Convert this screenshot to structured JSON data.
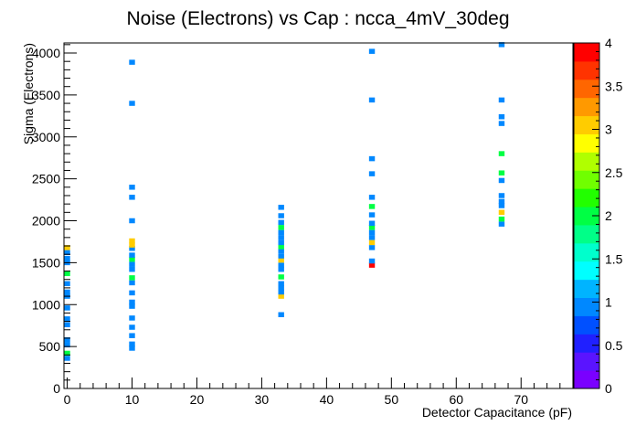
{
  "chart_data": {
    "type": "heatmap",
    "title": "Noise (Electrons) vs Cap : ncca_4mV_30deg",
    "xlabel": "Detector Capacitance (pF)",
    "ylabel": "Sigma (Electrons)",
    "xlim": [
      -0.5,
      78
    ],
    "ylim": [
      0,
      4120
    ],
    "x_ticks": [
      0,
      10,
      20,
      30,
      40,
      50,
      60,
      70
    ],
    "y_ticks": [
      0,
      500,
      1000,
      1500,
      2000,
      2500,
      3000,
      3500,
      4000
    ],
    "grid": false,
    "legend": "none",
    "colorbar": {
      "min": 0,
      "max": 4,
      "ticks": [
        0,
        0.5,
        1,
        1.5,
        2,
        2.5,
        3,
        3.5,
        4
      ],
      "colors": [
        "#7a00ff",
        "#5a14ff",
        "#2020ff",
        "#0050ff",
        "#0088ff",
        "#00b4ff",
        "#00ffff",
        "#00ffcc",
        "#00ff88",
        "#00ff44",
        "#22ff00",
        "#70ff00",
        "#b0ff00",
        "#ffff00",
        "#ffcc00",
        "#ff9900",
        "#ff6600",
        "#ff3300",
        "#ff0000"
      ]
    },
    "bin_width": 0.9,
    "bin_height": 60,
    "cells": [
      {
        "x": 0,
        "y": 360,
        "z": 1
      },
      {
        "x": 0,
        "y": 420,
        "z": 2
      },
      {
        "x": 0,
        "y": 520,
        "z": 1
      },
      {
        "x": 0,
        "y": 580,
        "z": 1
      },
      {
        "x": 0,
        "y": 760,
        "z": 1
      },
      {
        "x": 0,
        "y": 830,
        "z": 1
      },
      {
        "x": 0,
        "y": 960,
        "z": 1
      },
      {
        "x": 0,
        "y": 1100,
        "z": 1
      },
      {
        "x": 0,
        "y": 1150,
        "z": 1
      },
      {
        "x": 0,
        "y": 1250,
        "z": 1
      },
      {
        "x": 0,
        "y": 1370,
        "z": 2
      },
      {
        "x": 0,
        "y": 1500,
        "z": 1
      },
      {
        "x": 0,
        "y": 1550,
        "z": 1
      },
      {
        "x": 0,
        "y": 1620,
        "z": 1
      },
      {
        "x": 0,
        "y": 1680,
        "z": 3
      },
      {
        "x": 10,
        "y": 480,
        "z": 1
      },
      {
        "x": 10,
        "y": 530,
        "z": 1
      },
      {
        "x": 10,
        "y": 630,
        "z": 1
      },
      {
        "x": 10,
        "y": 730,
        "z": 1
      },
      {
        "x": 10,
        "y": 840,
        "z": 1
      },
      {
        "x": 10,
        "y": 980,
        "z": 1
      },
      {
        "x": 10,
        "y": 1030,
        "z": 1
      },
      {
        "x": 10,
        "y": 1140,
        "z": 1
      },
      {
        "x": 10,
        "y": 1260,
        "z": 1
      },
      {
        "x": 10,
        "y": 1320,
        "z": 2
      },
      {
        "x": 10,
        "y": 1420,
        "z": 1
      },
      {
        "x": 10,
        "y": 1480,
        "z": 1
      },
      {
        "x": 10,
        "y": 1540,
        "z": 2
      },
      {
        "x": 10,
        "y": 1590,
        "z": 1
      },
      {
        "x": 10,
        "y": 1670,
        "z": 1
      },
      {
        "x": 10,
        "y": 1710,
        "z": 3
      },
      {
        "x": 10,
        "y": 1760,
        "z": 3
      },
      {
        "x": 10,
        "y": 2000,
        "z": 1
      },
      {
        "x": 10,
        "y": 2280,
        "z": 1
      },
      {
        "x": 10,
        "y": 2400,
        "z": 1
      },
      {
        "x": 10,
        "y": 3400,
        "z": 1
      },
      {
        "x": 10,
        "y": 3890,
        "z": 1
      },
      {
        "x": 33,
        "y": 880,
        "z": 1
      },
      {
        "x": 33,
        "y": 1100,
        "z": 3
      },
      {
        "x": 33,
        "y": 1150,
        "z": 1
      },
      {
        "x": 33,
        "y": 1200,
        "z": 1
      },
      {
        "x": 33,
        "y": 1250,
        "z": 1
      },
      {
        "x": 33,
        "y": 1330,
        "z": 2
      },
      {
        "x": 33,
        "y": 1420,
        "z": 1
      },
      {
        "x": 33,
        "y": 1470,
        "z": 1
      },
      {
        "x": 33,
        "y": 1530,
        "z": 3
      },
      {
        "x": 33,
        "y": 1580,
        "z": 1
      },
      {
        "x": 33,
        "y": 1640,
        "z": 1
      },
      {
        "x": 33,
        "y": 1690,
        "z": 2
      },
      {
        "x": 33,
        "y": 1740,
        "z": 1
      },
      {
        "x": 33,
        "y": 1800,
        "z": 1
      },
      {
        "x": 33,
        "y": 1860,
        "z": 1
      },
      {
        "x": 33,
        "y": 1920,
        "z": 2
      },
      {
        "x": 33,
        "y": 1980,
        "z": 1
      },
      {
        "x": 33,
        "y": 2060,
        "z": 1
      },
      {
        "x": 33,
        "y": 2160,
        "z": 1
      },
      {
        "x": 47,
        "y": 1470,
        "z": 4
      },
      {
        "x": 47,
        "y": 1520,
        "z": 1
      },
      {
        "x": 47,
        "y": 1680,
        "z": 1
      },
      {
        "x": 47,
        "y": 1740,
        "z": 3
      },
      {
        "x": 47,
        "y": 1800,
        "z": 1
      },
      {
        "x": 47,
        "y": 1860,
        "z": 1
      },
      {
        "x": 47,
        "y": 1920,
        "z": 2
      },
      {
        "x": 47,
        "y": 1970,
        "z": 1
      },
      {
        "x": 47,
        "y": 2070,
        "z": 1
      },
      {
        "x": 47,
        "y": 2170,
        "z": 2
      },
      {
        "x": 47,
        "y": 2280,
        "z": 1
      },
      {
        "x": 47,
        "y": 2560,
        "z": 1
      },
      {
        "x": 47,
        "y": 2740,
        "z": 1
      },
      {
        "x": 47,
        "y": 3440,
        "z": 1
      },
      {
        "x": 47,
        "y": 4020,
        "z": 1
      },
      {
        "x": 67,
        "y": 1960,
        "z": 1
      },
      {
        "x": 67,
        "y": 2020,
        "z": 2
      },
      {
        "x": 67,
        "y": 2100,
        "z": 3
      },
      {
        "x": 67,
        "y": 2180,
        "z": 1
      },
      {
        "x": 67,
        "y": 2230,
        "z": 1
      },
      {
        "x": 67,
        "y": 2300,
        "z": 1
      },
      {
        "x": 67,
        "y": 2480,
        "z": 1
      },
      {
        "x": 67,
        "y": 2570,
        "z": 2
      },
      {
        "x": 67,
        "y": 2800,
        "z": 2
      },
      {
        "x": 67,
        "y": 3160,
        "z": 1
      },
      {
        "x": 67,
        "y": 3240,
        "z": 1
      },
      {
        "x": 67,
        "y": 3440,
        "z": 1
      },
      {
        "x": 67,
        "y": 4100,
        "z": 1
      }
    ]
  }
}
